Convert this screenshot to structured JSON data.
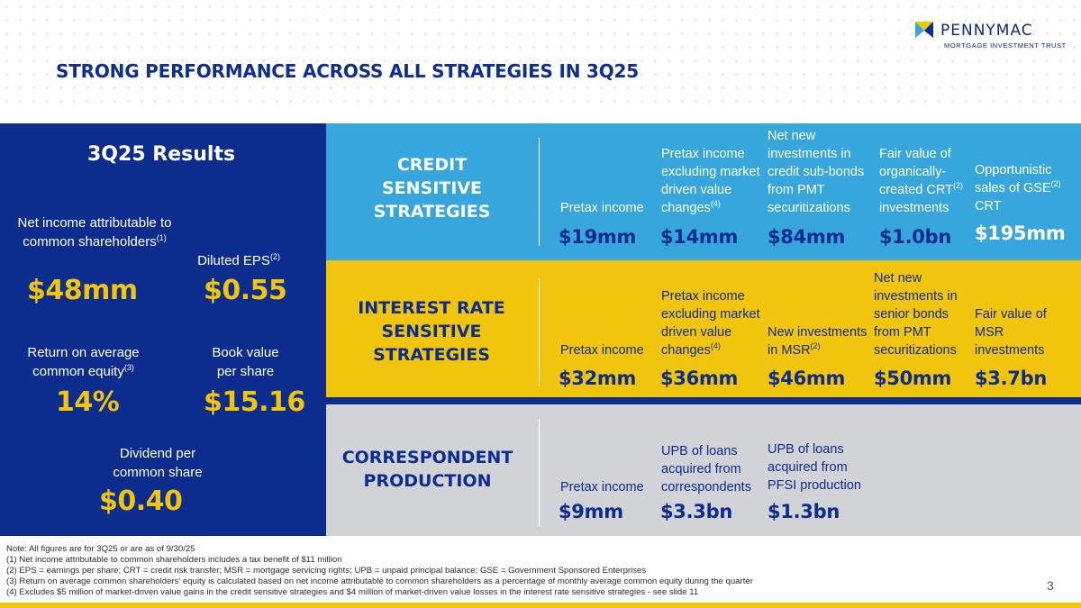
{
  "brand": {
    "name": "PENNYMAC",
    "subtitle": "MORTGAGE INVESTMENT TRUST",
    "navy": "#0d2d8e",
    "gold": "#f1c40d",
    "sky": "#36a6dc",
    "gray": "#d1d3d6",
    "logo_icon": "pennymac-logo-mark"
  },
  "title": "STRONG PERFORMANCE ACROSS ALL STRATEGIES IN 3Q25",
  "results": {
    "heading": "3Q25 Results",
    "net_income_label": "Net income attributable to common shareholders",
    "net_income_note": "(1)",
    "net_income_value": "$48mm",
    "eps_label": "Diluted EPS",
    "eps_note": "(2)",
    "eps_value": "$0.55",
    "roe_label_1": "Return on average",
    "roe_label_2": "common equity",
    "roe_note": "(3)",
    "roe_value": "14%",
    "bv_label_1": "Book value",
    "bv_label_2": "per share",
    "bv_value": "$15.16",
    "div_label_1": "Dividend per",
    "div_label_2": "common share",
    "div_value": "$0.40"
  },
  "credit": {
    "title": [
      "CREDIT",
      "SENSITIVE",
      "STRATEGIES"
    ],
    "m1_label": "Pretax income",
    "m1_value": "$19mm",
    "m2_label_a": "Pretax income",
    "m2_label_b": "excluding market",
    "m2_label_c": "driven value",
    "m2_label_d": "changes",
    "m2_note": "(4)",
    "m2_value": "$14mm",
    "m3_label_a": "Net new",
    "m3_label_b": "investments in",
    "m3_label_c": "credit sub-bonds",
    "m3_label_d": "from PMT",
    "m3_label_e": "securitizations",
    "m3_value": "$84mm",
    "m4_label_a": "Fair value of",
    "m4_label_b": "organically-",
    "m4_label_c": "created CRT",
    "m4_note": "(2)",
    "m4_label_d": "investments",
    "m4_value": "$1.0bn",
    "m5_label_a": "Opportunistic",
    "m5_label_b": "sales of GSE",
    "m5_note": "(2)",
    "m5_label_c": "CRT",
    "m5_value": "$195mm"
  },
  "interest": {
    "title": [
      "INTEREST RATE",
      "SENSITIVE",
      "STRATEGIES"
    ],
    "m1_label": "Pretax income",
    "m1_value": "$32mm",
    "m2_label_a": "Pretax income",
    "m2_label_b": "excluding market",
    "m2_label_c": "driven value",
    "m2_label_d": "changes",
    "m2_note": "(4)",
    "m2_value": "$36mm",
    "m3_label_a": "New investments",
    "m3_label_b": "in MSR",
    "m3_note": "(2)",
    "m3_value": "$46mm",
    "m4_label_a": "Net new",
    "m4_label_b": "investments in",
    "m4_label_c": "senior bonds",
    "m4_label_d": "from PMT",
    "m4_label_e": "securitizations",
    "m4_value": "$50mm",
    "m5_label_a": "Fair value of",
    "m5_label_b": "MSR",
    "m5_label_c": "investments",
    "m5_value": "$3.7bn"
  },
  "correspondent": {
    "title": [
      "CORRESPONDENT",
      "PRODUCTION"
    ],
    "m1_label": "Pretax income",
    "m1_value": "$9mm",
    "m2_label_a": "UPB of loans",
    "m2_label_b": "acquired from",
    "m2_label_c": "correspondents",
    "m2_value": "$3.3bn",
    "m3_label_a": "UPB of loans",
    "m3_label_b": "acquired from",
    "m3_label_c": "PFSI production",
    "m3_value": "$1.3bn"
  },
  "notes": [
    "Note: All figures are for 3Q25 or are as of 9/30/25",
    "(1) Net income attributable to common shareholders includes a tax benefit of $11 million",
    "(2) EPS = earnings per share; CRT = credit risk transfer; MSR = mortgage servicing rights; UPB = unpaid principal balance; GSE = Government Sponsored Enterprises",
    "(3) Return on average common shareholders’ equity is calculated based on net income attributable to common shareholders as a percentage of monthly average common equity during the quarter",
    "(4) Excludes $5 million of market-driven value gains in the credit sensitive strategies and $4 million of market-driven value losses in the interest rate sensitive strategies - see slide 11"
  ],
  "page_number": "3"
}
